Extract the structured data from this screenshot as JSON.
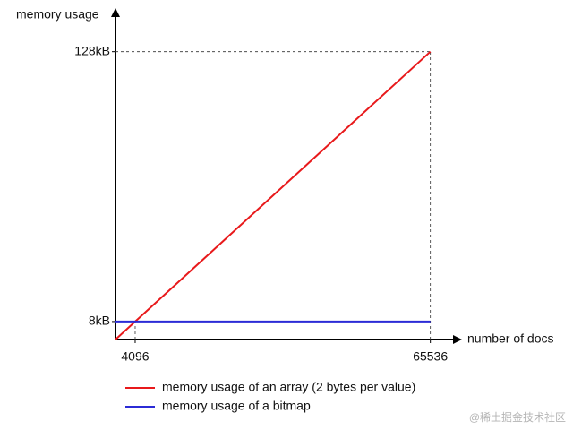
{
  "chart_data": {
    "type": "line",
    "y_label": "memory usage",
    "x_label": "number of docs",
    "x": [
      0,
      65536
    ],
    "series": [
      {
        "name": "memory usage of an array (2 bytes per value)",
        "color": "#e8191b",
        "values": [
          0,
          128
        ]
      },
      {
        "name": "memory usage of a bitmap",
        "color": "#2b2bd6",
        "values": [
          8,
          8
        ]
      }
    ],
    "xlim": [
      0,
      71000
    ],
    "ylim": [
      0,
      145
    ],
    "xticks": [
      4096,
      65536
    ],
    "yticks": [
      {
        "value": 8,
        "label": "8kB"
      },
      {
        "value": 128,
        "label": "128kB"
      }
    ],
    "watermark": "@稀土掘金技术社区"
  }
}
